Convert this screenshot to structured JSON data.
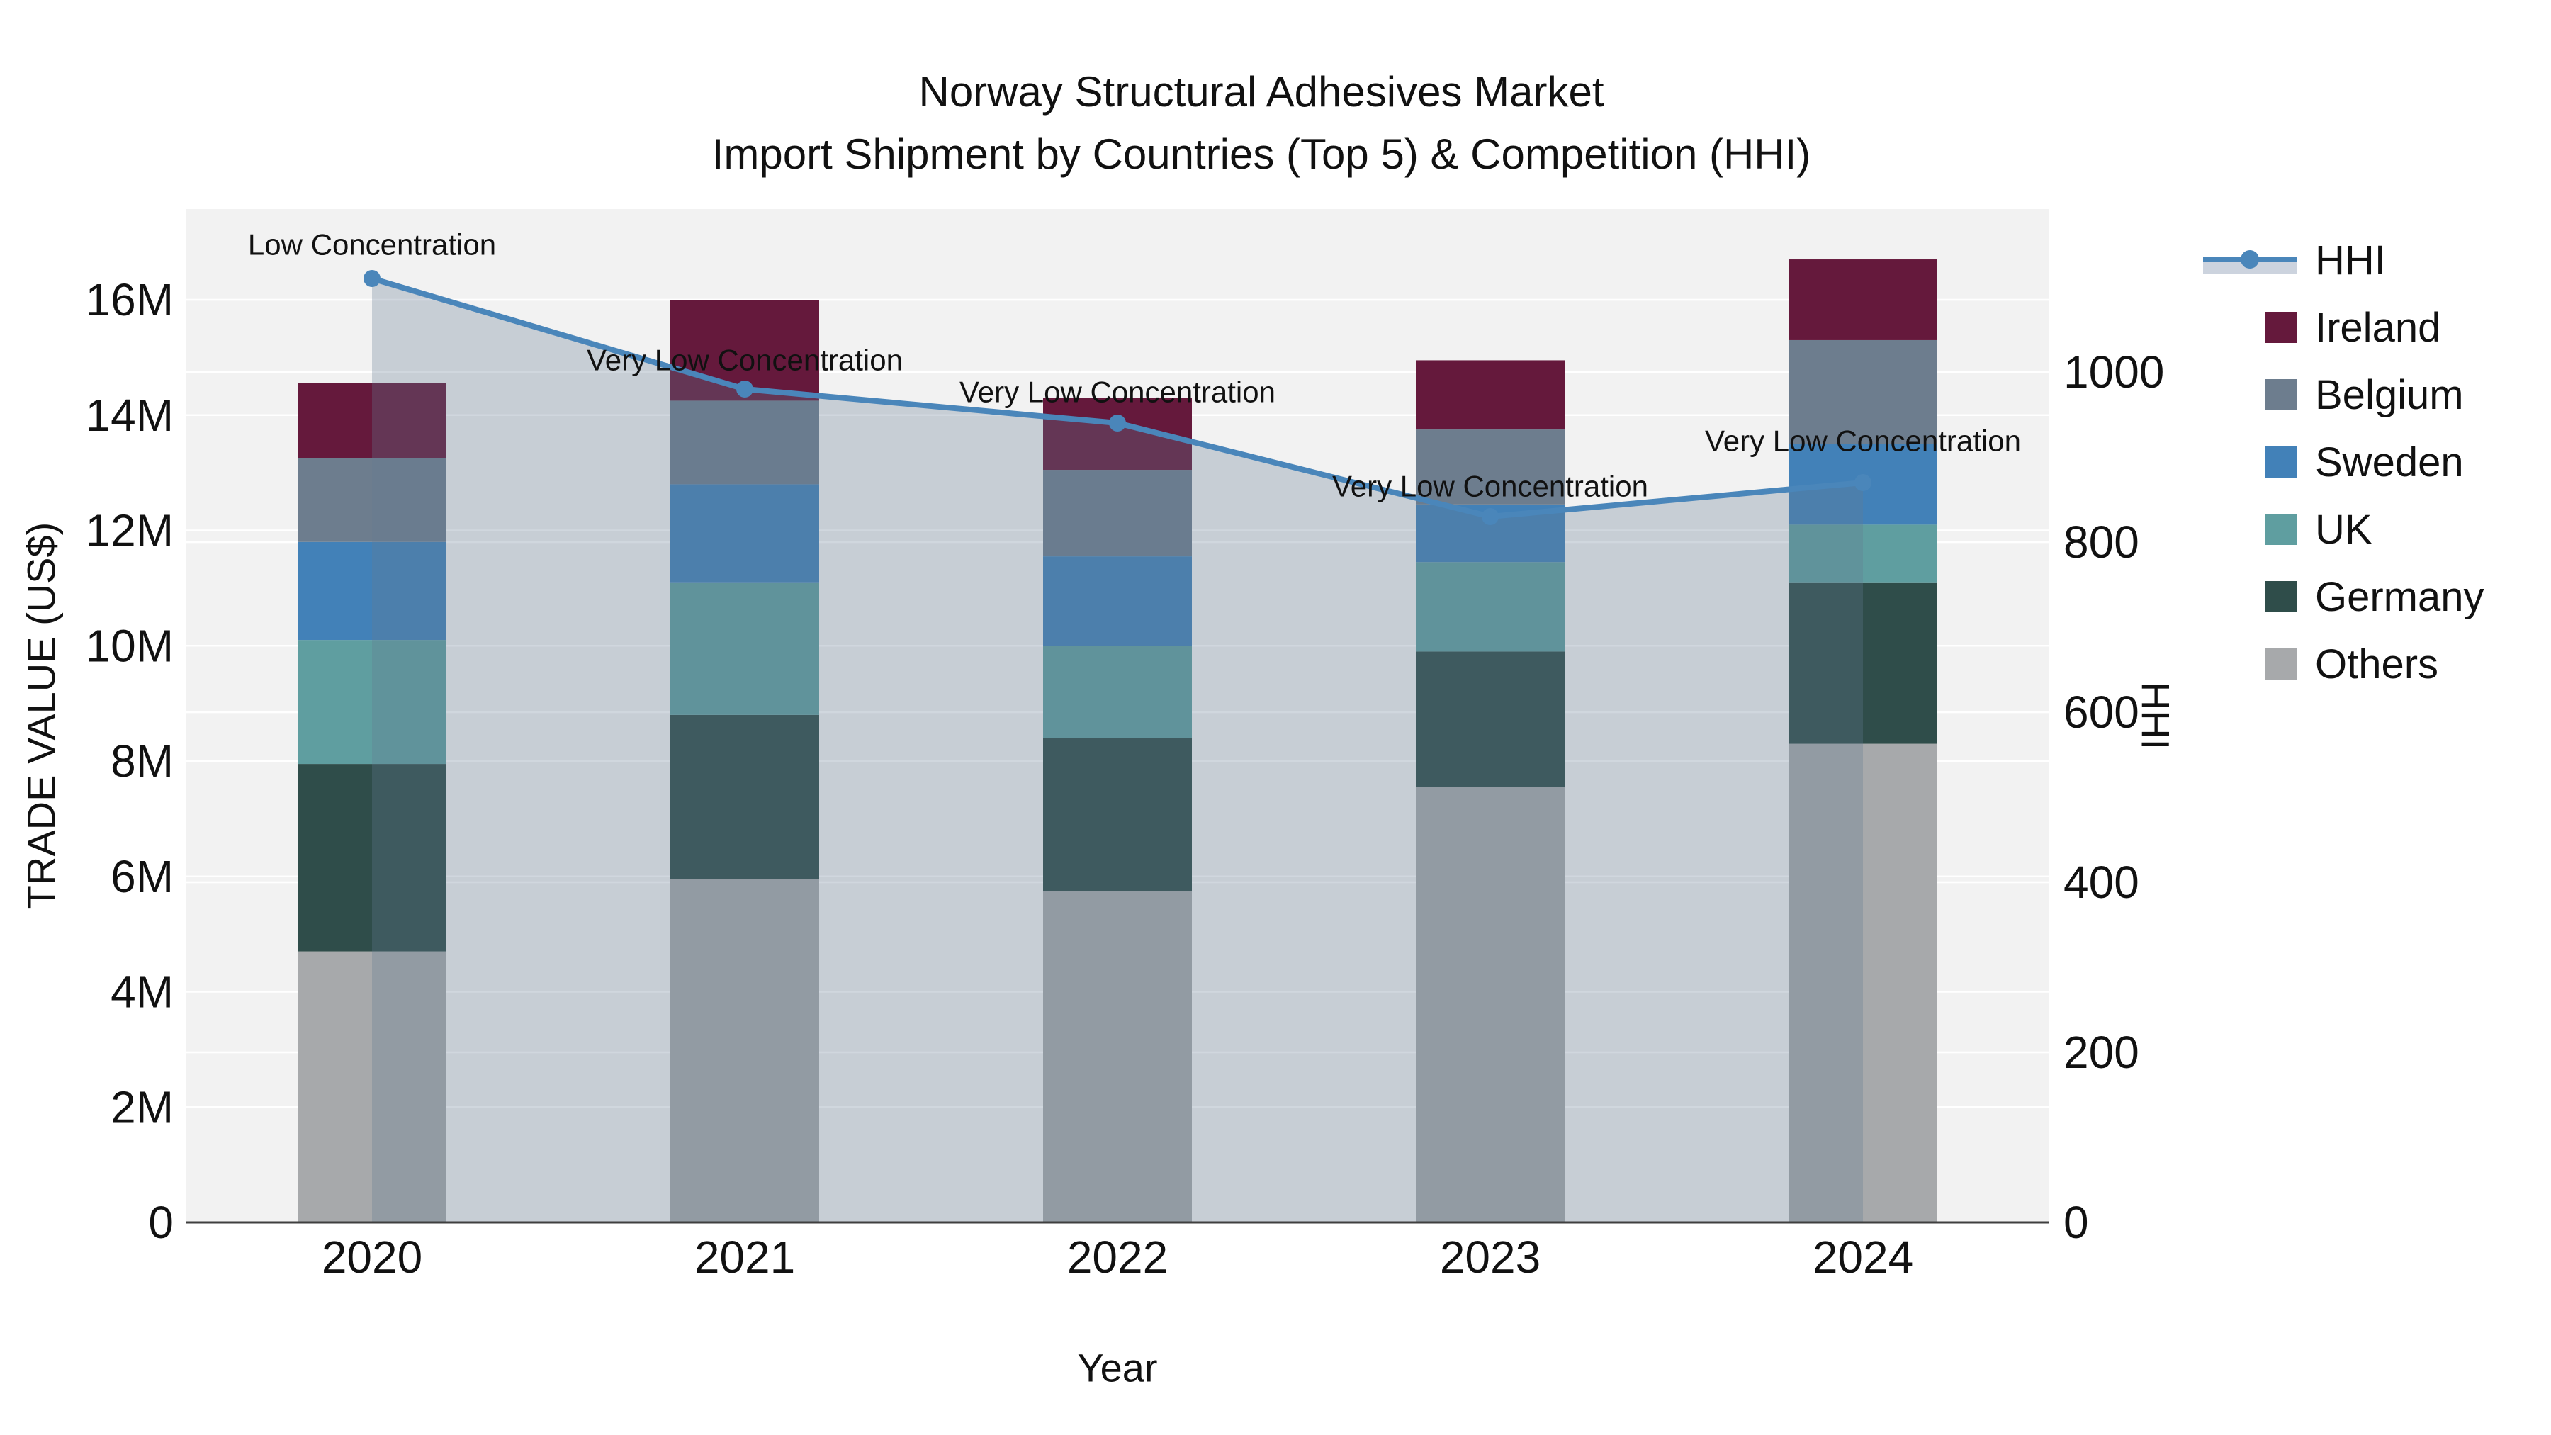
{
  "chart_data": {
    "type": "bar",
    "subtype": "stacked-bar-with-line",
    "title": "Norway Structural Adhesives Market",
    "subtitle": "Import Shipment by Countries (Top 5) & Competition (HHI)",
    "xlabel": "Year",
    "ylabel_left": "TRADE VALUE (US$)",
    "ylabel_right": "HHI",
    "categories": [
      "2020",
      "2021",
      "2022",
      "2023",
      "2024"
    ],
    "stack_bottom_to_top": [
      "Others",
      "Germany",
      "UK",
      "Sweden",
      "Belgium",
      "Ireland"
    ],
    "value_unit": "millions US$",
    "series": [
      {
        "name": "Ireland",
        "color": "#65193c",
        "values": [
          1.3,
          1.75,
          1.25,
          1.2,
          1.4
        ]
      },
      {
        "name": "Belgium",
        "color": "#6d7d8e",
        "values": [
          1.45,
          1.45,
          1.5,
          1.3,
          1.8
        ]
      },
      {
        "name": "Sweden",
        "color": "#4281b8",
        "values": [
          1.7,
          1.7,
          1.55,
          1.0,
          1.4
        ]
      },
      {
        "name": "UK",
        "color": "#5f9ea0",
        "values": [
          2.15,
          2.3,
          1.6,
          1.55,
          1.0
        ]
      },
      {
        "name": "Germany",
        "color": "#2f4d4a",
        "values": [
          3.25,
          2.85,
          2.65,
          2.35,
          2.8
        ]
      },
      {
        "name": "Others",
        "color": "#a7a9ab",
        "values": [
          4.7,
          5.95,
          5.75,
          7.55,
          8.3
        ]
      }
    ],
    "bar_totals": [
      14.55,
      16.0,
      14.3,
      14.95,
      16.7
    ],
    "hhi": {
      "name": "HHI",
      "axis": "right",
      "color": "#4a86ba",
      "area_fill": "rgba(100,122,145,0.30)",
      "values": [
        1110,
        980,
        940,
        830,
        870
      ],
      "annotations": [
        "Low Concentration",
        "Very Low Concentration",
        "Very Low Concentration",
        "Very Low Concentration",
        "Very Low Concentration"
      ]
    },
    "axes": {
      "y_left": {
        "ticks": [
          "0",
          "2M",
          "4M",
          "6M",
          "8M",
          "10M",
          "12M",
          "14M",
          "16M"
        ],
        "tick_values": [
          0,
          2,
          4,
          6,
          8,
          10,
          12,
          14,
          16
        ],
        "range": [
          0,
          17.6
        ]
      },
      "y_right": {
        "ticks": [
          "0",
          "200",
          "400",
          "600",
          "800",
          "1000"
        ],
        "tick_values": [
          0,
          200,
          400,
          600,
          800,
          1000
        ],
        "range": [
          0,
          1192
        ]
      },
      "x": {
        "ticks": [
          "2020",
          "2021",
          "2022",
          "2023",
          "2024"
        ]
      }
    },
    "legend_position": "right",
    "grid": true,
    "colors": {
      "plot_bg": "#f2f2f2",
      "gridline": "#ffffff",
      "axis_line": "#3f3f3f",
      "text": "#111111"
    }
  }
}
